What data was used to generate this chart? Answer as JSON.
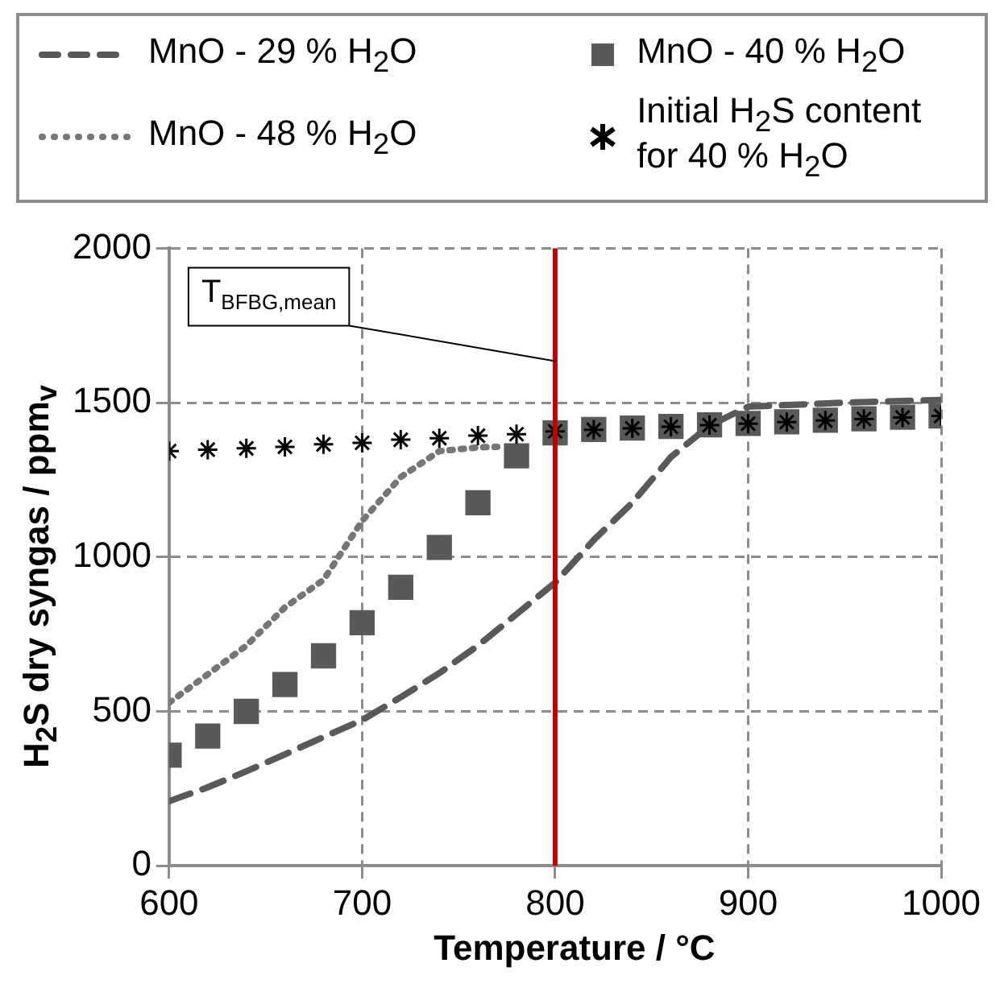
{
  "chart_data": {
    "type": "scatter",
    "xlabel": "Temperature / °C",
    "ylabel": "H$_{2}$S dry syngas / ppm$_{v}$",
    "xlim": [
      600,
      1000
    ],
    "xticks": [
      600,
      700,
      800,
      900,
      1000
    ],
    "ylim": [
      0,
      2000
    ],
    "yticks": [
      0,
      500,
      1000,
      1500,
      2000
    ],
    "grid": true,
    "legend": "top",
    "ref_lines": [
      {
        "axis": "x",
        "value": 800,
        "label": "T$_{BFBG,mean}$",
        "color": "#c00000"
      }
    ],
    "series": [
      {
        "name": "MnO - 29 % H$_{2}$O",
        "type": "line",
        "line_style": "dashed",
        "marker": "none",
        "color": "#595959",
        "x": [
          600,
          620,
          640,
          660,
          680,
          700,
          720,
          740,
          760,
          780,
          800,
          820,
          840,
          860,
          880,
          900,
          950,
          1000
        ],
        "values": [
          209,
          254,
          306,
          361,
          417,
          472,
          546,
          624,
          713,
          815,
          917,
          1055,
          1176,
          1324,
          1426,
          1487,
          1500,
          1509
        ]
      },
      {
        "name": "MnO - 40 % H$_{2}$O",
        "type": "scatter",
        "marker": "square",
        "color": "#595959",
        "x": [
          600,
          620,
          640,
          660,
          680,
          700,
          720,
          740,
          760,
          780,
          800,
          820,
          840,
          860,
          880,
          900,
          920,
          940,
          960,
          980,
          1000
        ],
        "values": [
          358,
          420,
          500,
          587,
          680,
          787,
          902,
          1031,
          1176,
          1328,
          1402,
          1413,
          1418,
          1423,
          1428,
          1433,
          1438,
          1443,
          1448,
          1453,
          1457
        ]
      },
      {
        "name": "MnO - 48 % H$_{2}$O",
        "type": "line",
        "line_style": "dotted",
        "marker": "none",
        "color": "#767676",
        "x": [
          600,
          620,
          640,
          660,
          680,
          700,
          720,
          740,
          760,
          770
        ],
        "values": [
          528,
          620,
          713,
          837,
          926,
          1117,
          1259,
          1343,
          1355,
          1357
        ]
      },
      {
        "name": "Initial H$_{2}$S content for 40 % H$_{2}$O",
        "type": "scatter",
        "marker": "cross",
        "color": "#000000",
        "x": [
          600,
          620,
          640,
          660,
          680,
          700,
          720,
          740,
          760,
          780,
          800,
          820,
          840,
          860,
          880,
          900,
          920,
          940,
          960,
          980,
          1000
        ],
        "values": [
          1343,
          1348,
          1352,
          1357,
          1365,
          1370,
          1380,
          1385,
          1393,
          1398,
          1407,
          1412,
          1417,
          1422,
          1427,
          1432,
          1437,
          1442,
          1447,
          1452,
          1457
        ]
      }
    ]
  }
}
